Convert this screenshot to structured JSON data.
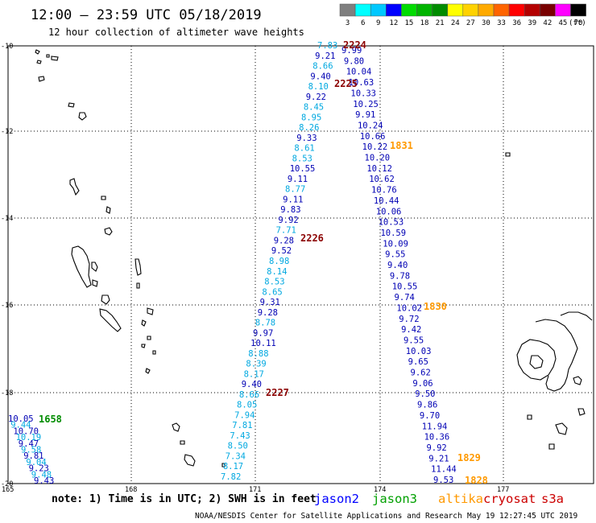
{
  "header": {
    "title": "12:00 – 23:59 UTC 05/18/2019",
    "subtitle": "12 hour collection of altimeter wave heights"
  },
  "legend": {
    "levels": [
      {
        "label": "3",
        "color": "#7f7f7f"
      },
      {
        "label": "6",
        "color": "#00ffff"
      },
      {
        "label": "9",
        "color": "#00c8ff"
      },
      {
        "label": "12",
        "color": "#0000ff"
      },
      {
        "label": "15",
        "color": "#00dc00"
      },
      {
        "label": "18",
        "color": "#00b400"
      },
      {
        "label": "21",
        "color": "#008c00"
      },
      {
        "label": "24",
        "color": "#ffff00"
      },
      {
        "label": "27",
        "color": "#ffd200"
      },
      {
        "label": "30",
        "color": "#ffaa00"
      },
      {
        "label": "33",
        "color": "#ff6400"
      },
      {
        "label": "36",
        "color": "#ff0000"
      },
      {
        "label": "39",
        "color": "#b40000"
      },
      {
        "label": "42",
        "color": "#780000"
      },
      {
        "label": "45",
        "color": "#ff00ff"
      },
      {
        "label": "70",
        "color": "#000000"
      }
    ],
    "unit": "(ft)"
  },
  "axes": {
    "lat_labels": [
      "-10",
      "-12",
      "-14",
      "-16",
      "-18",
      "-20"
    ],
    "lon_labels": [
      "165",
      "168",
      "171",
      "174",
      "177"
    ]
  },
  "colors": {
    "light": "#00a8e0",
    "dark": "#0000b4",
    "green": "#008c00",
    "orange": "#ff9900",
    "maroon": "#8b0000",
    "label_blue": "#0000ff",
    "label_green": "#00a000",
    "label_orange": "#ff9900",
    "label_red": "#cc0000"
  },
  "tracks": {
    "light_west": [
      "7.83",
      "9.21",
      "8.66",
      "9.40",
      "8.10",
      "9.22",
      "8.45",
      "8.95",
      "8.26",
      "9.33",
      "8.61",
      "8.53",
      "10.55",
      "9.11",
      "8.77",
      "9.11",
      "9.83",
      "9.92",
      "7.71",
      "9.28",
      "9.52",
      "8.98",
      "8.14",
      "8.53",
      "8.65",
      "9.31",
      "9.28",
      "8.78",
      "9.97",
      "10.11",
      "8.88",
      "8.39",
      "8.17",
      "9.40",
      "8.66",
      "8.05",
      "7.94",
      "7.81",
      "7.43",
      "8.50",
      "7.34",
      "8.17",
      "7.82"
    ],
    "dark_east": [
      "9.99",
      "9.80",
      "10.04",
      "10.63",
      "10.33",
      "10.25",
      "9.91",
      "10.24",
      "10.66",
      "10.22",
      "10.20",
      "10.12",
      "10.62",
      "10.76",
      "10.44",
      "10.06",
      "10.53",
      "10.59",
      "10.09",
      "9.55",
      "9.40",
      "9.78",
      "10.55",
      "9.74",
      "10.02",
      "9.72",
      "9.42",
      "9.55",
      "10.03",
      "9.65",
      "9.62",
      "9.06",
      "9.50",
      "9.86",
      "9.70",
      "11.94",
      "10.36",
      "9.92",
      "9.21",
      "11.44",
      "9.53"
    ],
    "sw_cluster": [
      "10.05",
      "9.44",
      "10.70",
      "10.19",
      "9.47",
      "9.58",
      "9.81",
      "9.04",
      "9.23",
      "9.48",
      "9.43"
    ]
  },
  "pass_labels": [
    {
      "text": "2224",
      "kind": "maroon"
    },
    {
      "text": "2225",
      "kind": "maroon"
    },
    {
      "text": "2226",
      "kind": "maroon"
    },
    {
      "text": "2227",
      "kind": "maroon"
    },
    {
      "text": "1831",
      "kind": "orange"
    },
    {
      "text": "1830",
      "kind": "orange"
    },
    {
      "text": "1829",
      "kind": "orange"
    },
    {
      "text": "1828",
      "kind": "orange"
    },
    {
      "text": "1658",
      "kind": "green"
    }
  ],
  "footer": {
    "note": "note: 1) Time is in UTC; 2) SWH is in feet",
    "satellites": [
      {
        "name": "jason2",
        "kind": "label_blue"
      },
      {
        "name": "jason3",
        "kind": "label_green"
      },
      {
        "name": "altika",
        "kind": "label_orange"
      },
      {
        "name": "cryosat",
        "kind": "label_red"
      },
      {
        "name": "s3a",
        "kind": "label_red"
      }
    ],
    "credit": "NOAA/NESDIS Center for Satellite Applications and Research",
    "timestamp": "May 19 12:27:45 UTC 2019"
  }
}
